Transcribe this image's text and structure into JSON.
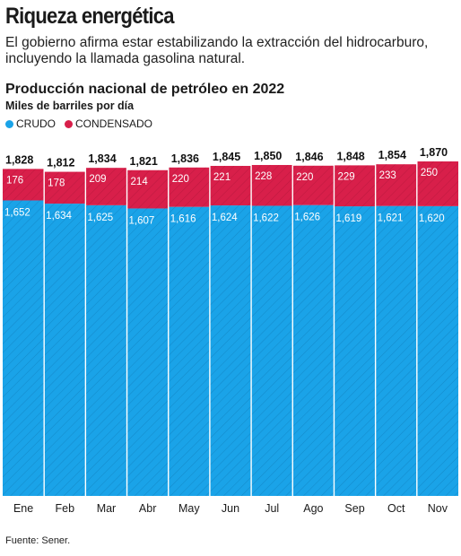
{
  "header": {
    "headline": "Riqueza energética",
    "dek": "El gobierno afirma estar estabilizando la extracción del hidrocarburo, incluyendo la llamada gasolina natural."
  },
  "footer": {
    "source": "Fuente: Sener."
  },
  "colors": {
    "crudo": "#1aa3e8",
    "condensado": "#d81f4a"
  },
  "chart_data": {
    "type": "bar",
    "stacked": true,
    "title": "Producción nacional de petróleo en 2022",
    "ylabel": "Miles de barriles por día",
    "legend": "top-left",
    "categories": [
      "Ene",
      "Feb",
      "Mar",
      "Abr",
      "May",
      "Jun",
      "Jul",
      "Ago",
      "Sep",
      "Oct",
      "Nov"
    ],
    "series": [
      {
        "name": "CRUDO",
        "values": [
          1652,
          1634,
          1625,
          1607,
          1616,
          1624,
          1622,
          1626,
          1619,
          1621,
          1620
        ]
      },
      {
        "name": "CONDENSADO",
        "values": [
          176,
          178,
          209,
          214,
          220,
          221,
          228,
          220,
          229,
          233,
          250
        ]
      }
    ],
    "totals": [
      1828,
      1812,
      1834,
      1821,
      1836,
      1845,
      1850,
      1846,
      1848,
      1854,
      1870
    ],
    "ylim": [
      0,
      1870
    ]
  }
}
